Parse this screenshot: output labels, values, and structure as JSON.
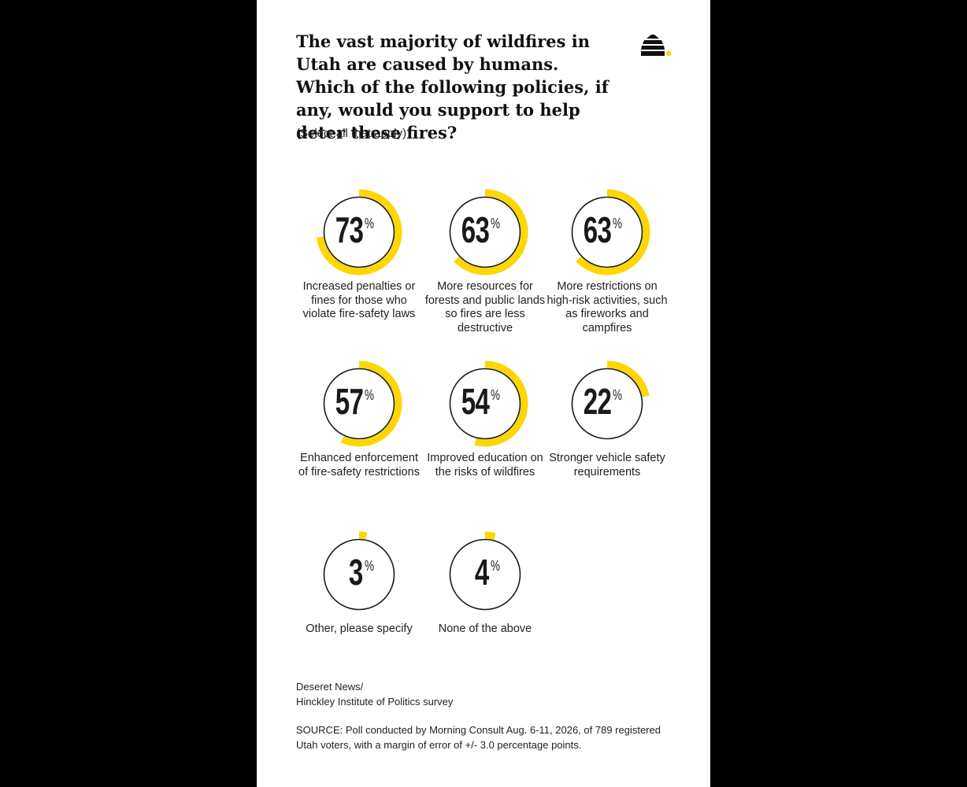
{
  "header": {
    "title": "The vast majority of wildfires in Utah are caused by humans. Which of the following policies, if any, would you support to help deter these fires?",
    "subtitle": "(Select all that apply)",
    "logo_icon": "beehive-logo-icon"
  },
  "colors": {
    "accent": "#FFD600",
    "ring_outline": "#1a1a1a",
    "text": "#222222",
    "background": "#ffffff",
    "frame": "#000000"
  },
  "chart_data": {
    "type": "donut",
    "unit": "%",
    "categories": [
      "Increased penalties or fines for those who violate fire-safety laws",
      "More resources for forests and public lands so fires are less destructive",
      "More restrictions on high-risk activities, such as fireworks and campfires",
      "Enhanced enforcement of fire-safety restrictions",
      "Improved education on the risks of wildfires",
      "Stronger vehicle safety requirements",
      "Other, please specify",
      "None of the above"
    ],
    "values": [
      73,
      63,
      63,
      57,
      54,
      22,
      3,
      4
    ],
    "percent_symbol": "%",
    "max": 100
  },
  "footer": {
    "credit_line1": "Deseret News/",
    "credit_line2": "Hinckley Institute of Politics survey",
    "source": "SOURCE: Poll conducted by Morning Consult Aug. 6-11, 2026, of 789 registered Utah voters, with a margin of error of +/- 3.0 percentage points."
  }
}
